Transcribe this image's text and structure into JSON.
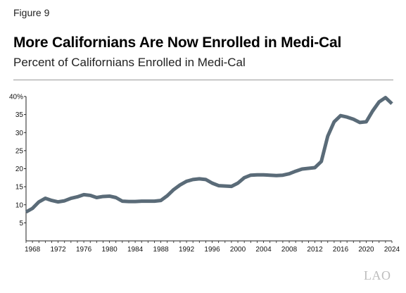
{
  "figure_label": "Figure 9",
  "chart_data": {
    "type": "line",
    "title": "More Californians Are Now Enrolled in Medi-Cal",
    "subtitle": "Percent of Californians Enrolled in Medi-Cal",
    "xlabel": "",
    "ylabel": "",
    "xlim": [
      1967,
      2024
    ],
    "ylim": [
      0,
      40
    ],
    "x_ticks": [
      1968,
      1972,
      1976,
      1980,
      1984,
      1988,
      1992,
      1996,
      2000,
      2004,
      2008,
      2012,
      2016,
      2020,
      2024
    ],
    "y_ticks": [
      {
        "value": 5,
        "label": "5"
      },
      {
        "value": 10,
        "label": "10"
      },
      {
        "value": 15,
        "label": "15"
      },
      {
        "value": 20,
        "label": "20"
      },
      {
        "value": 25,
        "label": "25"
      },
      {
        "value": 30,
        "label": "30"
      },
      {
        "value": 35,
        "label": "35"
      },
      {
        "value": 40,
        "label": "40%"
      }
    ],
    "grid": false,
    "line_color": "#5a6b78",
    "series": [
      {
        "x": [
          1967,
          1968,
          1969,
          1970,
          1971,
          1972,
          1973,
          1974,
          1975,
          1976,
          1977,
          1978,
          1979,
          1980,
          1981,
          1982,
          1983,
          1984,
          1985,
          1986,
          1987,
          1988,
          1989,
          1990,
          1991,
          1992,
          1993,
          1994,
          1995,
          1996,
          1997,
          1998,
          1999,
          2000,
          2001,
          2002,
          2003,
          2004,
          2005,
          2006,
          2007,
          2008,
          2009,
          2010,
          2011,
          2012,
          2013,
          2014,
          2015,
          2016,
          2017,
          2018,
          2019,
          2020,
          2021,
          2022,
          2023,
          2024
        ],
        "values": [
          8.0,
          9.0,
          10.8,
          11.8,
          11.2,
          10.8,
          11.1,
          11.8,
          12.2,
          12.8,
          12.6,
          12.0,
          12.3,
          12.4,
          12.0,
          11.0,
          10.9,
          10.9,
          11.0,
          11.0,
          11.0,
          11.2,
          12.5,
          14.2,
          15.5,
          16.5,
          17.0,
          17.2,
          17.0,
          16.0,
          15.3,
          15.2,
          15.1,
          16.0,
          17.5,
          18.2,
          18.3,
          18.3,
          18.2,
          18.1,
          18.2,
          18.6,
          19.3,
          19.9,
          20.1,
          20.3,
          22.0,
          29.0,
          33.0,
          34.7,
          34.3,
          33.7,
          32.8,
          33.0,
          36.0,
          38.5,
          39.7,
          38.0
        ]
      }
    ]
  },
  "watermark": "LAO"
}
